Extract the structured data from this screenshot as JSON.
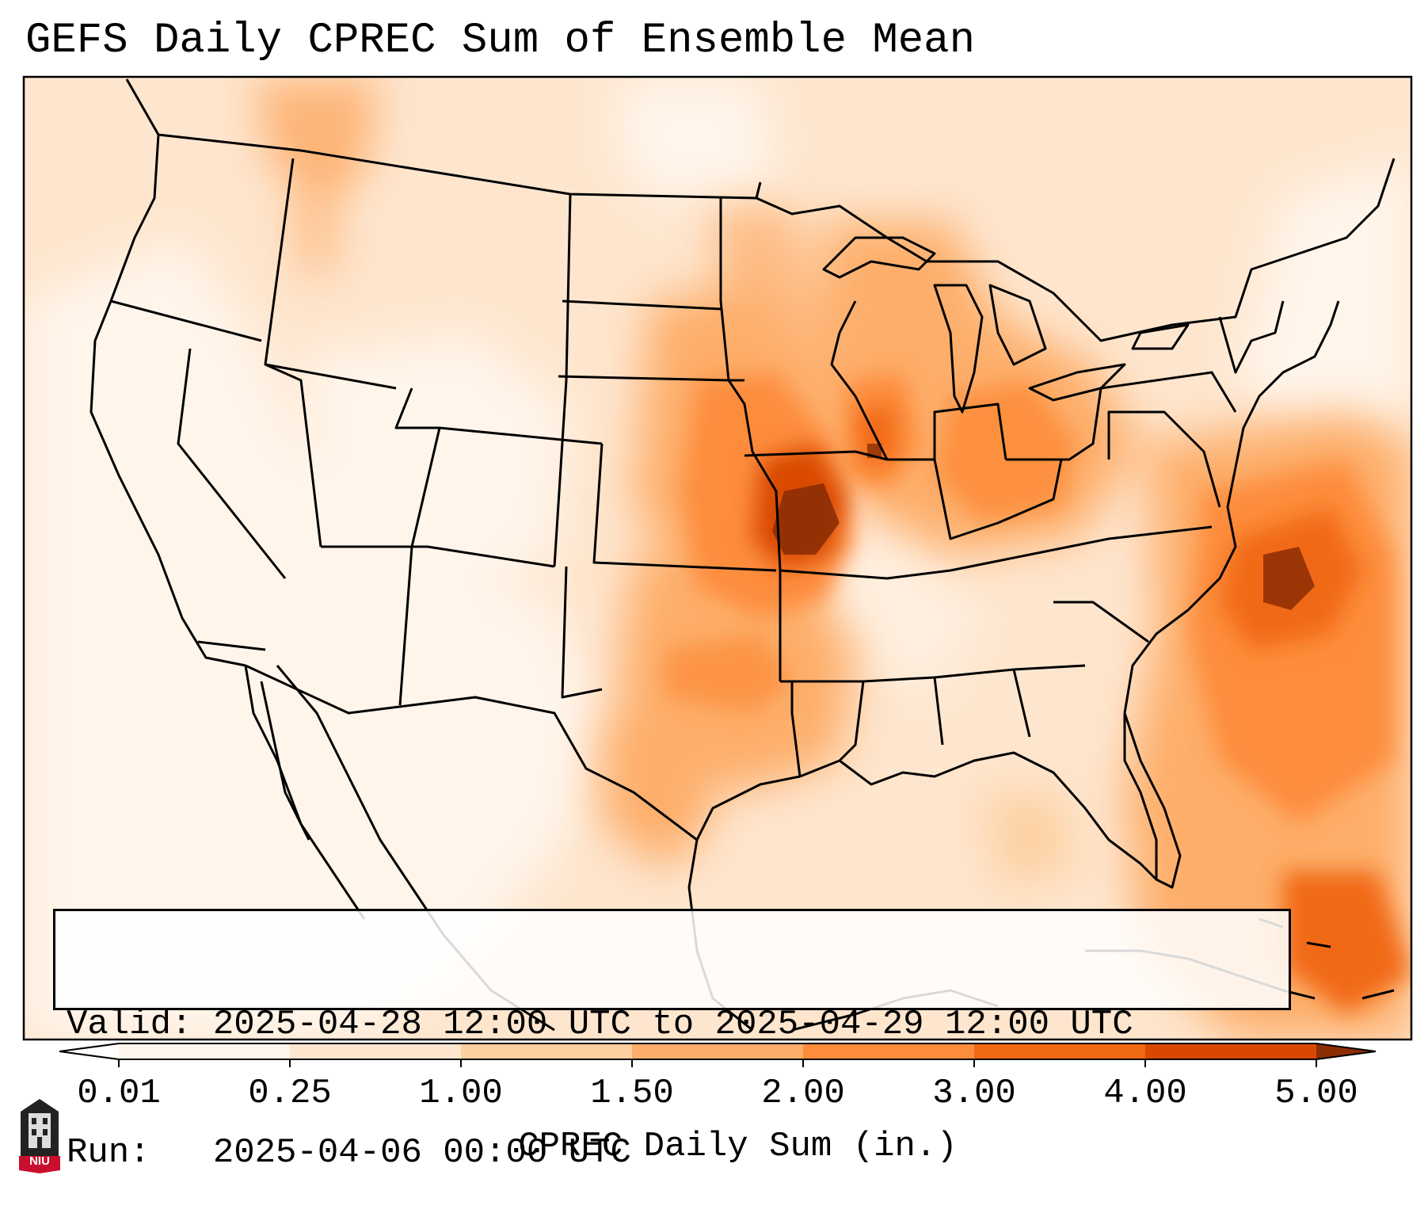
{
  "title": "GEFS Daily CPREC Sum of Ensemble Mean",
  "info": {
    "valid_line": "Valid: 2025-04-28 12:00 UTC to 2025-04-29 12:00 UTC",
    "run_line": "Run:   2025-04-06 00:00 UTC"
  },
  "colorbar": {
    "label": "CPREC Daily Sum (in.)",
    "ticks": [
      "0.01",
      "0.25",
      "1.00",
      "1.50",
      "2.00",
      "3.00",
      "4.00",
      "5.00"
    ],
    "colors": [
      "#fff5eb",
      "#fee6ce",
      "#fdd0a2",
      "#fdae6b",
      "#fd8d3c",
      "#f16913",
      "#d94801",
      "#8c2d04"
    ],
    "extend": "both"
  },
  "logo": {
    "text": "NIU",
    "color": "#c8102e"
  },
  "map": {
    "land_base_color": "#fee6ce",
    "ocean_base_color": "#fff5eb",
    "boundary_color": "#000000"
  }
}
